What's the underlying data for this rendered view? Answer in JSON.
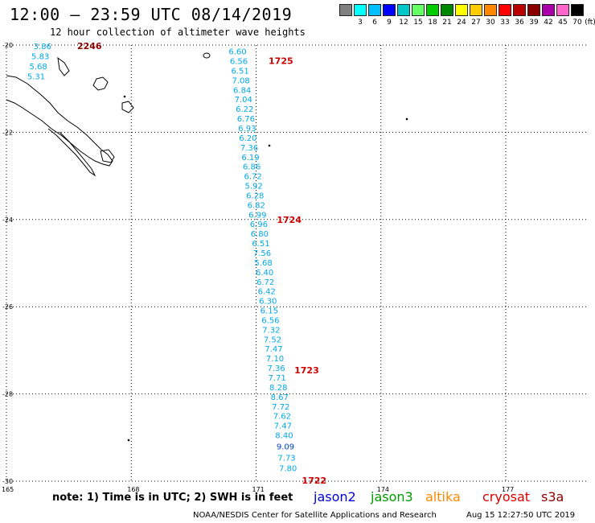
{
  "header": {
    "title": "12:00 – 23:59 UTC 08/14/2019",
    "subtitle": "12 hour collection of altimeter wave heights"
  },
  "legend": {
    "unit": "(ft)",
    "entries": [
      {
        "label": "",
        "color": "#808080"
      },
      {
        "label": "3",
        "color": "#00ffff"
      },
      {
        "label": "6",
        "color": "#00bfff"
      },
      {
        "label": "9",
        "color": "#0000ff"
      },
      {
        "label": "12",
        "color": "#00c8c8"
      },
      {
        "label": "15",
        "color": "#66ff66"
      },
      {
        "label": "18",
        "color": "#00cc00"
      },
      {
        "label": "21",
        "color": "#008800"
      },
      {
        "label": "24",
        "color": "#ffff00"
      },
      {
        "label": "27",
        "color": "#ffcc00"
      },
      {
        "label": "30",
        "color": "#ff8800"
      },
      {
        "label": "33",
        "color": "#ff0000"
      },
      {
        "label": "36",
        "color": "#bb0000"
      },
      {
        "label": "39",
        "color": "#880000"
      },
      {
        "label": "42",
        "color": "#aa00aa"
      },
      {
        "label": "45",
        "color": "#ff66cc"
      },
      {
        "label": "70",
        "color": "#000000"
      }
    ]
  },
  "axes": {
    "lat_labels": [
      "-20",
      "-22",
      "-24",
      "-26",
      "-28",
      "-30"
    ],
    "lon_labels": [
      "165",
      "168",
      "171",
      "174",
      "177"
    ]
  },
  "track_colors": {
    "wave": "#00a8e8",
    "wave_dark": "#0044cc",
    "time": "#cc0000",
    "time_dark": "#880000"
  },
  "tracks": [
    {
      "name": "west-track",
      "times": [
        {
          "label": "2246",
          "lat": -20.02,
          "lon": 166.7
        }
      ],
      "points": [
        {
          "label": "3.86",
          "lat": -20.02,
          "lon": 165.65
        },
        {
          "label": "5.83",
          "lat": -20.25,
          "lon": 165.6
        },
        {
          "label": "5.68",
          "lat": -20.48,
          "lon": 165.55
        },
        {
          "label": "5.31",
          "lat": -20.71,
          "lon": 165.5
        }
      ]
    },
    {
      "name": "main-track",
      "times": [
        {
          "label": "1725",
          "lat": -20.36,
          "lon": 171.3
        },
        {
          "label": "1724",
          "lat": -24.0,
          "lon": 171.5
        },
        {
          "label": "1723",
          "lat": -27.45,
          "lon": 171.92
        },
        {
          "label": "1722",
          "lat": -29.98,
          "lon": 172.1
        }
      ],
      "points": [
        {
          "label": "6.60",
          "lat": -20.14,
          "lon": 170.34
        },
        {
          "label": "6.56",
          "lat": -20.36,
          "lon": 170.37
        },
        {
          "label": "6.51",
          "lat": -20.58,
          "lon": 170.4
        },
        {
          "label": "7.08",
          "lat": -20.8,
          "lon": 170.42
        },
        {
          "label": "6.84",
          "lat": -21.02,
          "lon": 170.45
        },
        {
          "label": "7.04",
          "lat": -21.24,
          "lon": 170.48
        },
        {
          "label": "6.22",
          "lat": -21.46,
          "lon": 170.51
        },
        {
          "label": "6.76",
          "lat": -21.68,
          "lon": 170.54
        },
        {
          "label": "6.93",
          "lat": -21.9,
          "lon": 170.57
        },
        {
          "label": "6.20",
          "lat": -22.12,
          "lon": 170.59
        },
        {
          "label": "7.36",
          "lat": -22.34,
          "lon": 170.62
        },
        {
          "label": "6.19",
          "lat": -22.56,
          "lon": 170.65
        },
        {
          "label": "6.86",
          "lat": -22.78,
          "lon": 170.68
        },
        {
          "label": "6.72",
          "lat": -23.0,
          "lon": 170.71
        },
        {
          "label": "5.92",
          "lat": -23.22,
          "lon": 170.73
        },
        {
          "label": "6.28",
          "lat": -23.44,
          "lon": 170.76
        },
        {
          "label": "6.82",
          "lat": -23.66,
          "lon": 170.79
        },
        {
          "label": "6.99",
          "lat": -23.88,
          "lon": 170.82
        },
        {
          "label": "6.96",
          "lat": -24.1,
          "lon": 170.85
        },
        {
          "label": "6.80",
          "lat": -24.32,
          "lon": 170.87
        },
        {
          "label": "6.51",
          "lat": -24.54,
          "lon": 170.9
        },
        {
          "label": "7.56",
          "lat": -24.76,
          "lon": 170.93
        },
        {
          "label": "5.68",
          "lat": -24.98,
          "lon": 170.96
        },
        {
          "label": "6.40",
          "lat": -25.2,
          "lon": 170.99
        },
        {
          "label": "6.72",
          "lat": -25.42,
          "lon": 171.01
        },
        {
          "label": "6.42",
          "lat": -25.64,
          "lon": 171.04
        },
        {
          "label": "6.30",
          "lat": -25.86,
          "lon": 171.07
        },
        {
          "label": "6.15",
          "lat": -26.08,
          "lon": 171.1
        },
        {
          "label": "6.56",
          "lat": -26.3,
          "lon": 171.13
        },
        {
          "label": "7.32",
          "lat": -26.52,
          "lon": 171.15
        },
        {
          "label": "7.52",
          "lat": -26.74,
          "lon": 171.18
        },
        {
          "label": "7.47",
          "lat": -26.96,
          "lon": 171.21
        },
        {
          "label": "7.10",
          "lat": -27.18,
          "lon": 171.24
        },
        {
          "label": "7.36",
          "lat": -27.4,
          "lon": 171.27
        },
        {
          "label": "7.71",
          "lat": -27.62,
          "lon": 171.29
        },
        {
          "label": "8.28",
          "lat": -27.84,
          "lon": 171.32
        },
        {
          "label": "8.67",
          "lat": -28.06,
          "lon": 171.35
        },
        {
          "label": "7.72",
          "lat": -28.28,
          "lon": 171.38
        },
        {
          "label": "7.62",
          "lat": -28.5,
          "lon": 171.41
        },
        {
          "label": "7.47",
          "lat": -28.72,
          "lon": 171.43
        },
        {
          "label": "8.40",
          "lat": -28.94,
          "lon": 171.46
        },
        {
          "label": "9.09",
          "lat": -29.2,
          "lon": 171.49,
          "dark": true
        },
        {
          "label": "7.73",
          "lat": -29.46,
          "lon": 171.52
        },
        {
          "label": "7.80",
          "lat": -29.7,
          "lon": 171.55
        }
      ]
    }
  ],
  "note": "note:  1) Time is in UTC;  2) SWH is in feet",
  "satellites": [
    {
      "label": "jason2",
      "color": "#0000dd"
    },
    {
      "label": "jason3",
      "color": "#009900"
    },
    {
      "label": "altika",
      "color": "#ff8800"
    },
    {
      "label": "cryosat",
      "color": "#dd0000"
    },
    {
      "label": "s3a",
      "color": "#880000"
    }
  ],
  "footer": {
    "credit": "NOAA/NESDIS Center for Satellite Applications and Research",
    "timestamp": "Aug 15 12:27:50 UTC 2019"
  }
}
